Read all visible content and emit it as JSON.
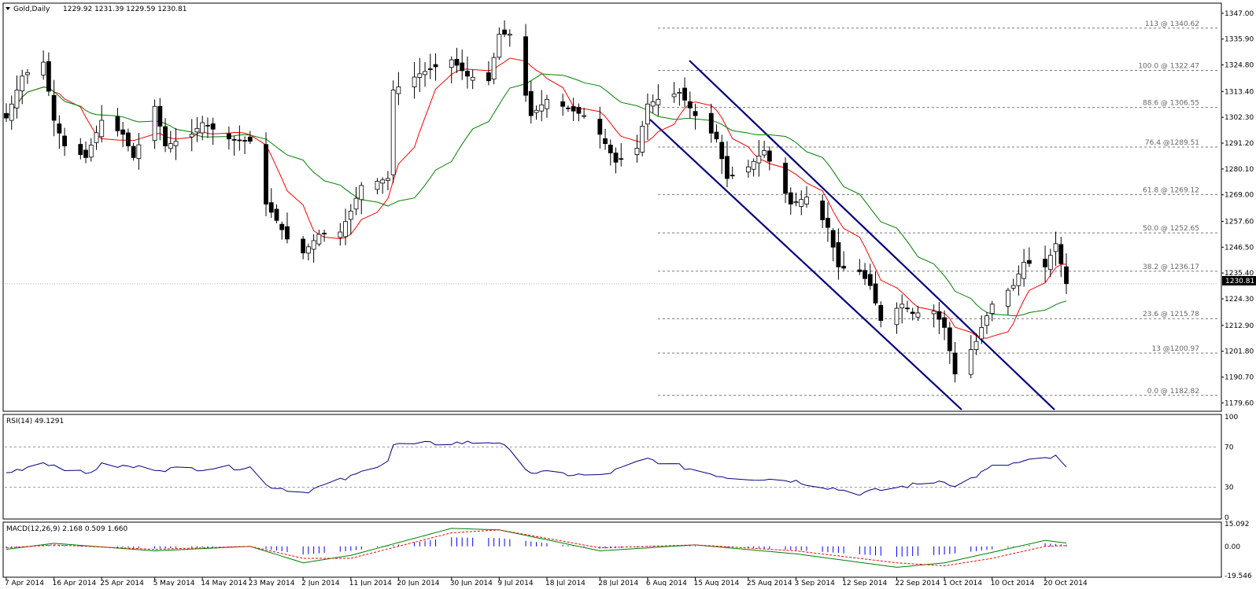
{
  "header": {
    "symbol": "Gold,Daily",
    "ohlc": "1229.92 1231.39 1229.59 1230.81"
  },
  "price_axis": {
    "ticks": [
      "1347.00",
      "1335.90",
      "1324.80",
      "1313.40",
      "1302.30",
      "1291.20",
      "1280.10",
      "1269.00",
      "1257.60",
      "1246.50",
      "1235.40",
      "1224.30",
      "1212.90",
      "1201.80",
      "1190.70",
      "1179.60"
    ],
    "current_price_label": "1230.81"
  },
  "fibonacci": [
    {
      "label": "113 @ 1340.62",
      "price": 1340.62
    },
    {
      "label": "100.0 @ 1322.47",
      "price": 1322.47
    },
    {
      "label": "88.6 @ 1306.55",
      "price": 1306.55
    },
    {
      "label": "76.4 @1289.51",
      "price": 1289.51
    },
    {
      "label": "61.8 @ 1269.12",
      "price": 1269.12
    },
    {
      "label": "50.0 @ 1252.65",
      "price": 1252.65
    },
    {
      "label": "38.2 @ 1236.17",
      "price": 1236.17
    },
    {
      "label": "23.6 @ 1215.78",
      "price": 1215.78
    },
    {
      "label": "13 @1200.97",
      "price": 1200.97
    },
    {
      "label": "0.0 @ 1182.82",
      "price": 1182.82
    }
  ],
  "rsi": {
    "title": "RSI(14) 49.1291",
    "ticks": [
      "100",
      "70",
      "30",
      "0"
    ],
    "levels": [
      70,
      30
    ]
  },
  "macd": {
    "title": "MACD(12,26,9) 2.168 0.509 1.660",
    "ticks": [
      "15.092",
      "0.00",
      "-19.546"
    ]
  },
  "date_axis": {
    "labels": [
      "7 Apr 2014",
      "16 Apr 2014",
      "25 Apr 2014",
      "5 May 2014",
      "14 May 2014",
      "23 May 2014",
      "2 Jun 2014",
      "11 Jun 2014",
      "20 Jun 2014",
      "30 Jun 2014",
      "9 Jul 2014",
      "18 Jul 2014",
      "28 Jul 2014",
      "6 Aug 2014",
      "15 Aug 2014",
      "25 Aug 2014",
      "3 Sep 2014",
      "12 Sep 2014",
      "22 Sep 2014",
      "1 Oct 2014",
      "10 Oct 2014",
      "20 Oct 2014"
    ]
  },
  "colors": {
    "background": "#ffffff",
    "candle_up": "#ffffff",
    "candle_down": "#000000",
    "ma_fast": "#ff0000",
    "ma_slow": "#008000",
    "channel": "#000080",
    "rsi_line": "#000080",
    "macd_line": "#008000",
    "macd_signal": "#ff0000",
    "macd_hist": "#0000ff"
  },
  "chart_data": [
    {
      "type": "candlestick",
      "title": "Gold,Daily",
      "ylim": [
        1177,
        1350
      ],
      "close_series_anchors": [
        {
          "date": "7 Apr 2014",
          "close": 1302
        },
        {
          "date": "10 Apr 2014",
          "close": 1320
        },
        {
          "date": "14 Apr 2014",
          "close": 1326
        },
        {
          "date": "16 Apr 2014",
          "close": 1301
        },
        {
          "date": "18 Apr 2014",
          "close": 1290
        },
        {
          "date": "22 Apr 2014",
          "close": 1285
        },
        {
          "date": "25 Apr 2014",
          "close": 1301
        },
        {
          "date": "29 Apr 2014",
          "close": 1295
        },
        {
          "date": "1 May 2014",
          "close": 1285
        },
        {
          "date": "5 May 2014",
          "close": 1307
        },
        {
          "date": "7 May 2014",
          "close": 1290
        },
        {
          "date": "12 May 2014",
          "close": 1295
        },
        {
          "date": "14 May 2014",
          "close": 1300
        },
        {
          "date": "19 May 2014",
          "close": 1293
        },
        {
          "date": "23 May 2014",
          "close": 1292
        },
        {
          "date": "26 May 2014",
          "close": 1265
        },
        {
          "date": "28 May 2014",
          "close": 1258
        },
        {
          "date": "30 May 2014",
          "close": 1250
        },
        {
          "date": "2 Jun 2014",
          "close": 1244
        },
        {
          "date": "5 Jun 2014",
          "close": 1252
        },
        {
          "date": "9 Jun 2014",
          "close": 1253
        },
        {
          "date": "11 Jun 2014",
          "close": 1262
        },
        {
          "date": "13 Jun 2014",
          "close": 1273
        },
        {
          "date": "18 Jun 2014",
          "close": 1276
        },
        {
          "date": "19 Jun 2014",
          "close": 1314
        },
        {
          "date": "24 Jun 2014",
          "close": 1321
        },
        {
          "date": "30 Jun 2014",
          "close": 1327
        },
        {
          "date": "3 Jul 2014",
          "close": 1320
        },
        {
          "date": "7 Jul 2014",
          "close": 1318
        },
        {
          "date": "9 Jul 2014",
          "close": 1338
        },
        {
          "date": "11 Jul 2014",
          "close": 1338
        },
        {
          "date": "15 Jul 2014",
          "close": 1303
        },
        {
          "date": "18 Jul 2014",
          "close": 1310
        },
        {
          "date": "22 Jul 2014",
          "close": 1306
        },
        {
          "date": "25 Jul 2014",
          "close": 1303
        },
        {
          "date": "28 Jul 2014",
          "close": 1295
        },
        {
          "date": "31 Jul 2014",
          "close": 1283
        },
        {
          "date": "4 Aug 2014",
          "close": 1289
        },
        {
          "date": "6 Aug 2014",
          "close": 1308
        },
        {
          "date": "8 Aug 2014",
          "close": 1310
        },
        {
          "date": "12 Aug 2014",
          "close": 1313
        },
        {
          "date": "15 Aug 2014",
          "close": 1303
        },
        {
          "date": "19 Aug 2014",
          "close": 1293
        },
        {
          "date": "21 Aug 2014",
          "close": 1276
        },
        {
          "date": "25 Aug 2014",
          "close": 1281
        },
        {
          "date": "28 Aug 2014",
          "close": 1288
        },
        {
          "date": "2 Sep 2014",
          "close": 1265
        },
        {
          "date": "5 Sep 2014",
          "close": 1268
        },
        {
          "date": "9 Sep 2014",
          "close": 1255
        },
        {
          "date": "11 Sep 2014",
          "close": 1238
        },
        {
          "date": "15 Sep 2014",
          "close": 1236
        },
        {
          "date": "17 Sep 2014",
          "close": 1230
        },
        {
          "date": "19 Sep 2014",
          "close": 1215
        },
        {
          "date": "23 Sep 2014",
          "close": 1222
        },
        {
          "date": "25 Sep 2014",
          "close": 1218
        },
        {
          "date": "29 Sep 2014",
          "close": 1219
        },
        {
          "date": "1 Oct 2014",
          "close": 1212
        },
        {
          "date": "3 Oct 2014",
          "close": 1192
        },
        {
          "date": "7 Oct 2014",
          "close": 1206
        },
        {
          "date": "8 Oct 2014",
          "close": 1212
        },
        {
          "date": "10 Oct 2014",
          "close": 1222
        },
        {
          "date": "14 Oct 2014",
          "close": 1230
        },
        {
          "date": "16 Oct 2014",
          "close": 1240
        },
        {
          "date": "20 Oct 2014",
          "close": 1238
        },
        {
          "date": "22 Oct 2014",
          "close": 1248
        },
        {
          "date": "24 Oct 2014",
          "close": 1230.81
        }
      ],
      "annotations": [
        "descending price channel (Aug–Oct 2014)",
        "Fibonacci retracement 1322.47 → 1182.82"
      ]
    },
    {
      "type": "line",
      "title": "RSI(14) 49.1291",
      "ylim": [
        0,
        100
      ],
      "grid_levels": [
        70,
        30
      ],
      "anchors": [
        {
          "date": "7 Apr 2014",
          "value": 44
        },
        {
          "date": "14 Apr 2014",
          "value": 55
        },
        {
          "date": "22 Apr 2014",
          "value": 43
        },
        {
          "date": "25 Apr 2014",
          "value": 52
        },
        {
          "date": "7 May 2014",
          "value": 48
        },
        {
          "date": "23 May 2014",
          "value": 50
        },
        {
          "date": "26 May 2014",
          "value": 32
        },
        {
          "date": "2 Jun 2014",
          "value": 25
        },
        {
          "date": "11 Jun 2014",
          "value": 40
        },
        {
          "date": "18 Jun 2014",
          "value": 57
        },
        {
          "date": "19 Jun 2014",
          "value": 72
        },
        {
          "date": "30 Jun 2014",
          "value": 74
        },
        {
          "date": "9 Jul 2014",
          "value": 75
        },
        {
          "date": "15 Jul 2014",
          "value": 45
        },
        {
          "date": "28 Jul 2014",
          "value": 41
        },
        {
          "date": "6 Aug 2014",
          "value": 58
        },
        {
          "date": "21 Aug 2014",
          "value": 40
        },
        {
          "date": "2 Sep 2014",
          "value": 37
        },
        {
          "date": "15 Sep 2014",
          "value": 24
        },
        {
          "date": "1 Oct 2014",
          "value": 37
        },
        {
          "date": "3 Oct 2014",
          "value": 30
        },
        {
          "date": "10 Oct 2014",
          "value": 50
        },
        {
          "date": "22 Oct 2014",
          "value": 60
        },
        {
          "date": "24 Oct 2014",
          "value": 49.13
        }
      ]
    },
    {
      "type": "line",
      "title": "MACD(12,26,9) 2.168 0.509 1.660",
      "ylim": [
        -19.546,
        15.092
      ],
      "series": [
        {
          "name": "MACD",
          "anchors": [
            {
              "date": "7 Apr 2014",
              "value": -2
            },
            {
              "date": "16 Apr 2014",
              "value": 2
            },
            {
              "date": "5 May 2014",
              "value": -3
            },
            {
              "date": "23 May 2014",
              "value": 0
            },
            {
              "date": "2 Jun 2014",
              "value": -11
            },
            {
              "date": "11 Jun 2014",
              "value": -6
            },
            {
              "date": "30 Jun 2014",
              "value": 12
            },
            {
              "date": "9 Jul 2014",
              "value": 11
            },
            {
              "date": "28 Jul 2014",
              "value": -3
            },
            {
              "date": "15 Aug 2014",
              "value": 1
            },
            {
              "date": "3 Sep 2014",
              "value": -5
            },
            {
              "date": "22 Sep 2014",
              "value": -14
            },
            {
              "date": "1 Oct 2014",
              "value": -11
            },
            {
              "date": "10 Oct 2014",
              "value": -4
            },
            {
              "date": "20 Oct 2014",
              "value": 4
            },
            {
              "date": "24 Oct 2014",
              "value": 2.168
            }
          ]
        },
        {
          "name": "Signal",
          "anchors": [
            {
              "date": "7 Apr 2014",
              "value": -1
            },
            {
              "date": "16 Apr 2014",
              "value": 1
            },
            {
              "date": "5 May 2014",
              "value": -2
            },
            {
              "date": "23 May 2014",
              "value": 0
            },
            {
              "date": "2 Jun 2014",
              "value": -8
            },
            {
              "date": "11 Jun 2014",
              "value": -8
            },
            {
              "date": "30 Jun 2014",
              "value": 9
            },
            {
              "date": "9 Jul 2014",
              "value": 11
            },
            {
              "date": "28 Jul 2014",
              "value": -1
            },
            {
              "date": "15 Aug 2014",
              "value": 1
            },
            {
              "date": "3 Sep 2014",
              "value": -3
            },
            {
              "date": "22 Sep 2014",
              "value": -11
            },
            {
              "date": "1 Oct 2014",
              "value": -13
            },
            {
              "date": "10 Oct 2014",
              "value": -8
            },
            {
              "date": "20 Oct 2014",
              "value": 0
            },
            {
              "date": "24 Oct 2014",
              "value": 0.509
            }
          ]
        }
      ]
    }
  ]
}
